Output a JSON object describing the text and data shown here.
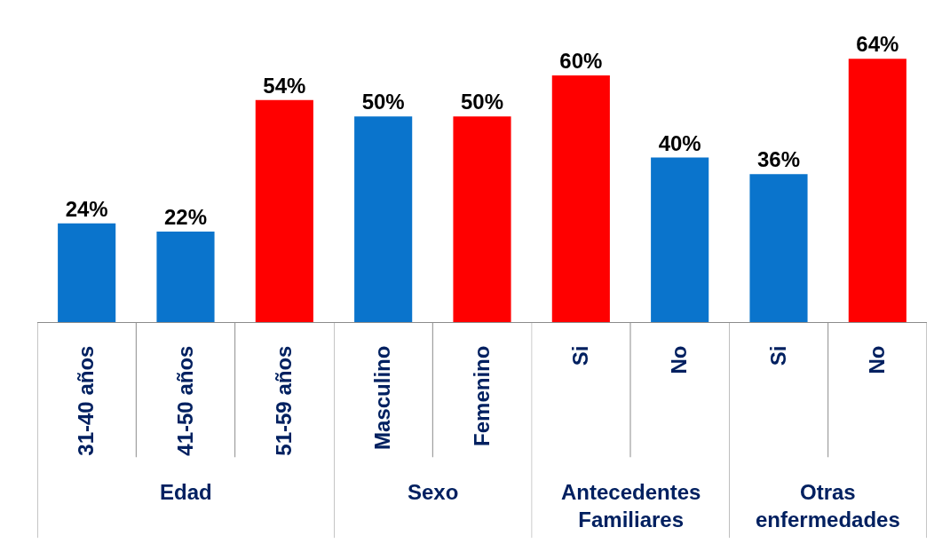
{
  "chart_data": [
    {
      "type": "bar",
      "xlabel": "Edad",
      "categories": [
        "31-40 años",
        "41-50 años",
        "51-59 años"
      ],
      "values": [
        24,
        22,
        54
      ],
      "colors": [
        "#0a74cc",
        "#0a74cc",
        "#ff0000"
      ],
      "value_labels": [
        "24%",
        "22%",
        "54%"
      ],
      "tick_labels": "x"
    },
    {
      "type": "bar",
      "xlabel": "Sexo",
      "categories": [
        "Masculino",
        "Femenino"
      ],
      "values": [
        50,
        50
      ],
      "colors": [
        "#0a74cc",
        "#ff0000"
      ],
      "value_labels": [
        "50%",
        "50%"
      ],
      "tick_labels": "x"
    },
    {
      "type": "bar",
      "xlabel": "Antecedentes Familiares",
      "categories": [
        "Si",
        "No"
      ],
      "values": [
        60,
        40
      ],
      "colors": [
        "#ff0000",
        "#0a74cc"
      ],
      "value_labels": [
        "60%",
        "40%"
      ],
      "tick_labels": "x"
    },
    {
      "type": "bar",
      "xlabel": "Otras enfermedades",
      "categories": [
        "Si",
        "No"
      ],
      "values": [
        36,
        64
      ],
      "colors": [
        "#0a74cc",
        "#ff0000"
      ],
      "value_labels": [
        "36%",
        "64%"
      ],
      "tick_labels": "x"
    }
  ]
}
